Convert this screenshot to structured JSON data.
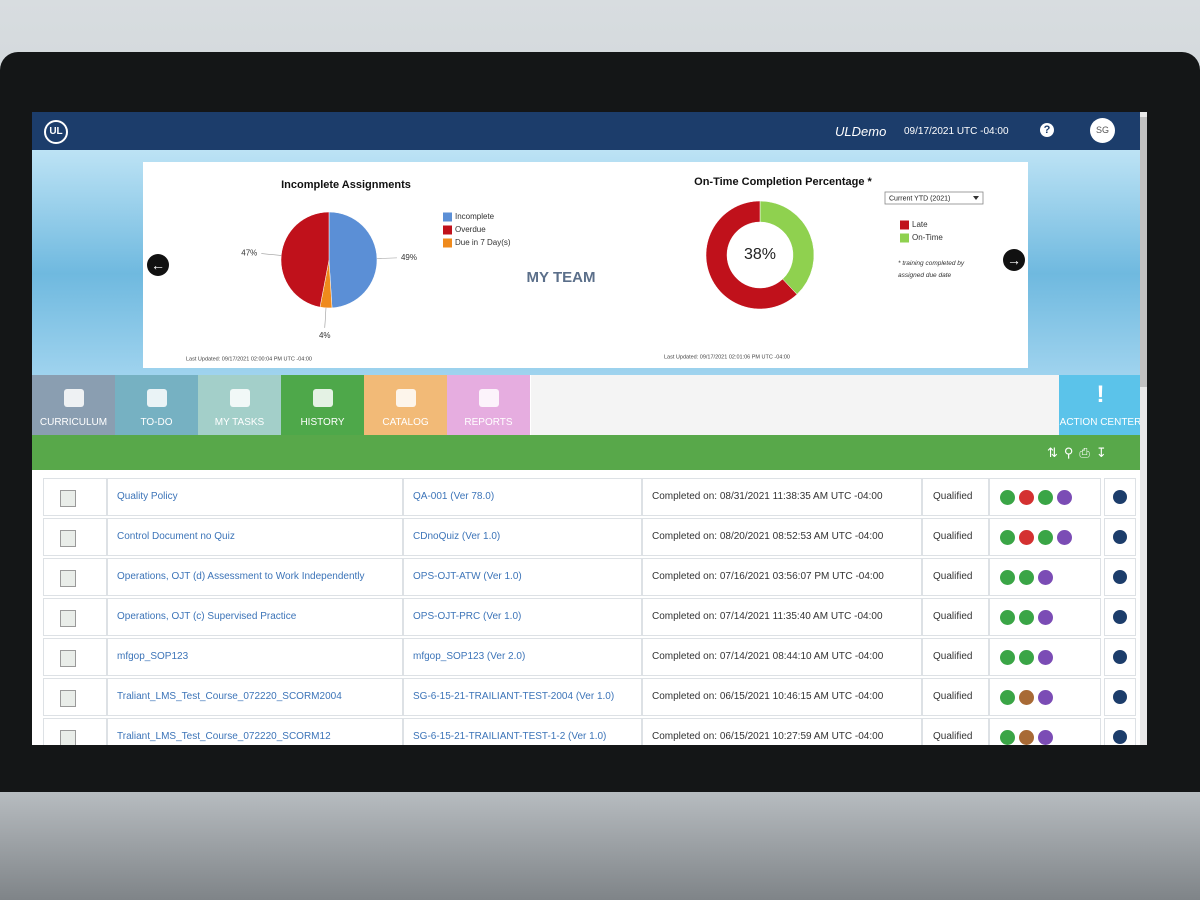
{
  "header": {
    "logo": "UL",
    "site": "ULDemo",
    "datetime": "09/17/2021 UTC -04:00",
    "help": "?",
    "user": "SG"
  },
  "dashboard": {
    "heading": "MY TEAM",
    "charts": [
      {
        "type": "pie",
        "title": "Incomplete Assignments",
        "categories": [
          "Incomplete",
          "Overdue",
          "Due in 7 Day(s)"
        ],
        "values": [
          49,
          47,
          4
        ],
        "value_labels": [
          "49%",
          "47%",
          "4%"
        ],
        "colors": [
          "#5b8fd6",
          "#c0111b",
          "#ef8a1c"
        ],
        "footnote": "Last Updated: 09/17/2021 02:00:04 PM UTC -04:00"
      },
      {
        "type": "donut",
        "title": "On-Time Completion Percentage *",
        "filter": "Current YTD (2021)",
        "categories": [
          "Late",
          "On-Time"
        ],
        "values": [
          62,
          38
        ],
        "value_labels": [
          null,
          "38%"
        ],
        "colors": [
          "#c0111b",
          "#8fd14f"
        ],
        "note": "* training completed by assigned due date",
        "footnote": "Last Updated: 09/17/2021 02:01:06 PM UTC -04:00"
      }
    ]
  },
  "tabs": [
    "CURRICULUM",
    "TO-DO",
    "MY TASKS",
    "HISTORY",
    "CATALOG",
    "REPORTS"
  ],
  "action_center": "ACTION CENTER",
  "table": {
    "rows": [
      [
        "Quality Policy",
        "QA-001 (Ver 78.0)",
        "Completed on: 08/31/2021 11:38:35 AM UTC -04:00",
        "Qualified"
      ],
      [
        "Control Document no Quiz",
        "CDnoQuiz (Ver 1.0)",
        "Completed on: 08/20/2021 08:52:53 AM UTC -04:00",
        "Qualified"
      ],
      [
        "Operations, OJT (d) Assessment to Work Independently",
        "OPS-OJT-ATW (Ver 1.0)",
        "Completed on: 07/16/2021 03:56:07 PM UTC -04:00",
        "Qualified"
      ],
      [
        "Operations, OJT (c) Supervised Practice",
        "OPS-OJT-PRC (Ver 1.0)",
        "Completed on: 07/14/2021 11:35:40 AM UTC -04:00",
        "Qualified"
      ],
      [
        "mfgop_SOP123",
        "mfgop_SOP123 (Ver 2.0)",
        "Completed on: 07/14/2021 08:44:10 AM UTC -04:00",
        "Qualified"
      ],
      [
        "Traliant_LMS_Test_Course_072220_SCORM2004",
        "SG-6-15-21-TRAILIANT-TEST-2004 (Ver 1.0)",
        "Completed on: 06/15/2021 10:46:15 AM UTC -04:00",
        "Qualified"
      ],
      [
        "Traliant_LMS_Test_Course_072220_SCORM12",
        "SG-6-15-21-TRAILIANT-TEST-1-2 (Ver 1.0)",
        "Completed on: 06/15/2021 10:27:59 AM UTC -04:00",
        "Qualified"
      ]
    ]
  }
}
